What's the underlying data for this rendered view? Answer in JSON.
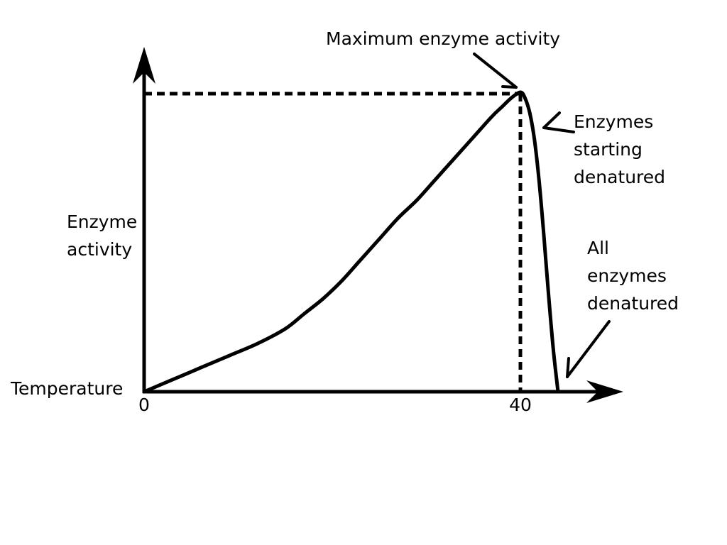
{
  "chart_data": {
    "type": "line",
    "xlabel": "Temperature",
    "ylabel_lines": [
      "Enzyme",
      "activity"
    ],
    "x_ticks": [
      {
        "value": 0,
        "label": "0"
      },
      {
        "value": 40,
        "label": "40"
      }
    ],
    "xlim": [
      0,
      50
    ],
    "ylim": [
      0,
      1
    ],
    "grid": false,
    "series": [
      {
        "x": [
          0,
          3,
          6,
          9,
          12,
          15,
          17,
          19,
          21,
          23,
          25,
          27,
          29,
          31,
          33,
          35,
          37,
          38,
          39,
          40,
          40.5,
          41,
          41.5,
          42,
          42.5,
          43,
          43.5,
          44
        ],
        "y": [
          0,
          0.04,
          0.08,
          0.12,
          0.16,
          0.21,
          0.26,
          0.31,
          0.37,
          0.44,
          0.51,
          0.58,
          0.64,
          0.71,
          0.78,
          0.85,
          0.92,
          0.95,
          0.98,
          1.0,
          0.98,
          0.93,
          0.84,
          0.7,
          0.52,
          0.32,
          0.14,
          0.0
        ]
      }
    ],
    "reference_lines": {
      "peak_x": 40,
      "peak_y": 1.0
    },
    "annotations": {
      "max_activity": {
        "lines": [
          "Maximum enzyme activity"
        ]
      },
      "starting_denatured": {
        "lines": [
          "Enzymes",
          "starting",
          "denatured"
        ]
      },
      "all_denatured": {
        "lines": [
          "All",
          "enzymes",
          "denatured"
        ]
      }
    }
  }
}
